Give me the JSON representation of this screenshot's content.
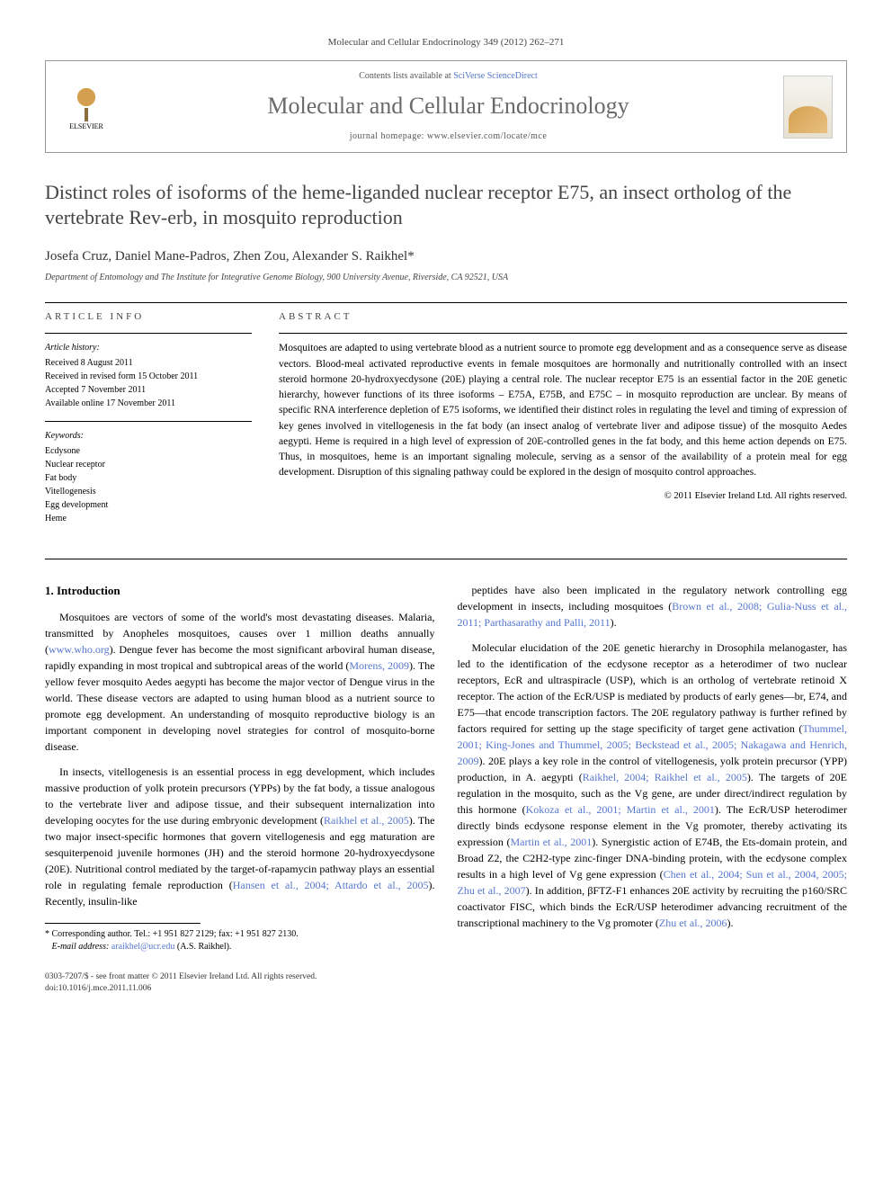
{
  "journal_ref": "Molecular and Cellular Endocrinology 349 (2012) 262–271",
  "header": {
    "contents_prefix": "Contents lists available at ",
    "contents_link": "SciVerse ScienceDirect",
    "journal_name": "Molecular and Cellular Endocrinology",
    "homepage_prefix": "journal homepage: ",
    "homepage_url": "www.elsevier.com/locate/mce",
    "publisher": "ELSEVIER"
  },
  "article": {
    "title": "Distinct roles of isoforms of the heme-liganded nuclear receptor E75, an insect ortholog of the vertebrate Rev-erb, in mosquito reproduction",
    "authors": "Josefa Cruz, Daniel Mane-Padros, Zhen Zou, Alexander S. Raikhel",
    "corresponding_marker": "*",
    "affiliation": "Department of Entomology and The Institute for Integrative Genome Biology, 900 University Avenue, Riverside, CA 92521, USA"
  },
  "info": {
    "heading": "ARTICLE INFO",
    "history_label": "Article history:",
    "history": [
      "Received 8 August 2011",
      "Received in revised form 15 October 2011",
      "Accepted 7 November 2011",
      "Available online 17 November 2011"
    ],
    "keywords_label": "Keywords:",
    "keywords": [
      "Ecdysone",
      "Nuclear receptor",
      "Fat body",
      "Vitellogenesis",
      "Egg development",
      "Heme"
    ]
  },
  "abstract": {
    "heading": "ABSTRACT",
    "text": "Mosquitoes are adapted to using vertebrate blood as a nutrient source to promote egg development and as a consequence serve as disease vectors. Blood-meal activated reproductive events in female mosquitoes are hormonally and nutritionally controlled with an insect steroid hormone 20-hydroxyecdysone (20E) playing a central role. The nuclear receptor E75 is an essential factor in the 20E genetic hierarchy, however functions of its three isoforms – E75A, E75B, and E75C – in mosquito reproduction are unclear. By means of specific RNA interference depletion of E75 isoforms, we identified their distinct roles in regulating the level and timing of expression of key genes involved in vitellogenesis in the fat body (an insect analog of vertebrate liver and adipose tissue) of the mosquito Aedes aegypti. Heme is required in a high level of expression of 20E-controlled genes in the fat body, and this heme action depends on E75. Thus, in mosquitoes, heme is an important signaling molecule, serving as a sensor of the availability of a protein meal for egg development. Disruption of this signaling pathway could be explored in the design of mosquito control approaches.",
    "copyright": "© 2011 Elsevier Ireland Ltd. All rights reserved."
  },
  "body": {
    "section_number": "1.",
    "section_title": "Introduction",
    "left_col": [
      {
        "text": "Mosquitoes are vectors of some of the world's most devastating diseases. Malaria, transmitted by Anopheles mosquitoes, causes over 1 million deaths annually (",
        "link": "www.who.org",
        "after": "). Dengue fever has become the most significant arboviral human disease, rapidly expanding in most tropical and subtropical areas of the world (",
        "link2": "Morens, 2009",
        "after2": "). The yellow fever mosquito Aedes aegypti has become the major vector of Dengue virus in the world. These disease vectors are adapted to using human blood as a nutrient source to promote egg development. An understanding of mosquito reproductive biology is an important component in developing novel strategies for control of mosquito-borne disease."
      },
      {
        "text": "In insects, vitellogenesis is an essential process in egg development, which includes massive production of yolk protein precursors (YPPs) by the fat body, a tissue analogous to the vertebrate liver and adipose tissue, and their subsequent internalization into developing oocytes for the use during embryonic development (",
        "link": "Raikhel et al., 2005",
        "after": "). The two major insect-specific hormones that govern vitellogenesis and egg maturation are sesquiterpenoid juvenile hormones (JH) and the steroid hormone 20-hydroxyecdysone (20E). Nutritional control mediated by the target-of-rapamycin pathway plays an essential role in regulating female reproduction (",
        "link2": "Hansen et al., 2004; Attardo et al., 2005",
        "after2": "). Recently, insulin-like"
      }
    ],
    "right_col": [
      {
        "text": "peptides have also been implicated in the regulatory network controlling egg development in insects, including mosquitoes (",
        "link": "Brown et al., 2008; Gulia-Nuss et al., 2011; Parthasarathy and Palli, 2011",
        "after": ")."
      },
      {
        "text": "Molecular elucidation of the 20E genetic hierarchy in Drosophila melanogaster, has led to the identification of the ecdysone receptor as a heterodimer of two nuclear receptors, EcR and ultraspiracle (USP), which is an ortholog of vertebrate retinoid X receptor. The action of the EcR/USP is mediated by products of early genes—br, E74, and E75—that encode transcription factors. The 20E regulatory pathway is further refined by factors required for setting up the stage specificity of target gene activation (",
        "link": "Thummel, 2001; King-Jones and Thummel, 2005; Beckstead et al., 2005; Nakagawa and Henrich, 2009",
        "after": "). 20E plays a key role in the control of vitellogenesis, yolk protein precursor (YPP) production, in A. aegypti (",
        "link2": "Raikhel, 2004; Raikhel et al., 2005",
        "after2": "). The targets of 20E regulation in the mosquito, such as the Vg gene, are under direct/indirect regulation by this hormone (",
        "link3": "Kokoza et al., 2001; Martin et al., 2001",
        "after3": "). The EcR/USP heterodimer directly binds ecdysone response element in the Vg promoter, thereby activating its expression (",
        "link4": "Martin et al., 2001",
        "after4": "). Synergistic action of E74B, the Ets-domain protein, and Broad Z2, the C2H2-type zinc-finger DNA-binding protein, with the ecdysone complex results in a high level of Vg gene expression (",
        "link5": "Chen et al., 2004; Sun et al., 2004, 2005; Zhu et al., 2007",
        "after5": "). In addition, βFTZ-F1 enhances 20E activity by recruiting the p160/SRC coactivator FISC, which binds the EcR/USP heterodimer advancing recruitment of the transcriptional machinery to the Vg promoter (",
        "link6": "Zhu et al., 2006",
        "after6": ")."
      }
    ]
  },
  "footnote": {
    "marker": "*",
    "text": "Corresponding author. Tel.: +1 951 827 2129; fax: +1 951 827 2130.",
    "email_label": "E-mail address:",
    "email": "araikhel@ucr.edu",
    "email_person": "(A.S. Raikhel)."
  },
  "footer": {
    "issn": "0303-7207/$ - see front matter © 2011 Elsevier Ireland Ltd. All rights reserved.",
    "doi": "doi:10.1016/j.mce.2011.11.006"
  },
  "colors": {
    "link": "#5577cc",
    "heading_gray": "#6a6a6a",
    "text": "#000000"
  }
}
